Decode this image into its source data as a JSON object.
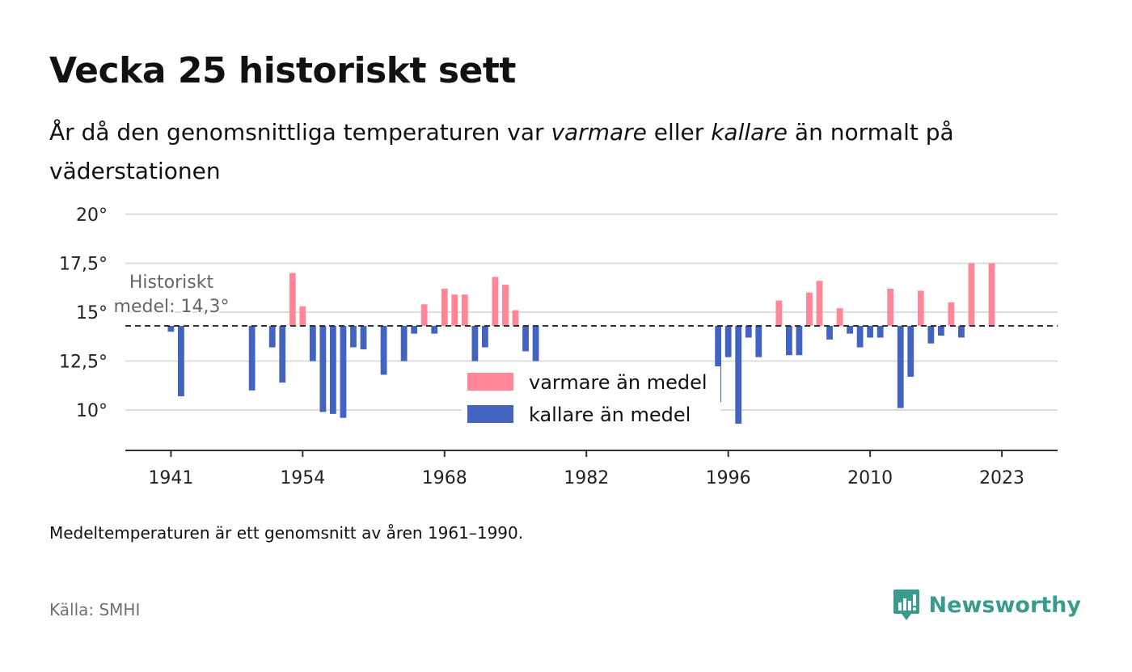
{
  "header": {
    "title": "Vecka 25 historiskt sett",
    "subtitle_parts": [
      "År då den genomsnittliga temperaturen var ",
      "varmare",
      " eller ",
      "kallare",
      " än normalt på väderstationen"
    ]
  },
  "footer": {
    "note": "Medeltemperaturen är ett genomsnitt av åren 1961–1990.",
    "source": "Källa: SMHI",
    "brand": "Newsworthy"
  },
  "colors": {
    "warm": "#ff8696",
    "cold": "#4263c0",
    "brand": "#3a9a8e",
    "grid": "#dddddd",
    "reference": "#333333"
  },
  "chart_data": {
    "type": "bar",
    "baseline": 14.3,
    "baseline_label": [
      "Historiskt",
      "medel: 14,3°"
    ],
    "ylim": [
      8,
      20
    ],
    "yticks": [
      10,
      12.5,
      15,
      17.5,
      20
    ],
    "ytick_labels": [
      "10°",
      "12,5°",
      "15°",
      "17,5°",
      "20°"
    ],
    "xlim": [
      1936.5,
      2028.5
    ],
    "xticks": [
      1941,
      1954,
      1968,
      1982,
      1996,
      2010,
      2023
    ],
    "xtick_labels": [
      "1941",
      "1954",
      "1968",
      "1982",
      "1996",
      "2010",
      "2023"
    ],
    "grid": true,
    "legend": {
      "position": "center",
      "entries": [
        {
          "label": "varmare än medel",
          "color": "#ff8696"
        },
        {
          "label": "kallare än medel",
          "color": "#4263c0"
        }
      ]
    },
    "x": [
      1941,
      1942,
      1949,
      1951,
      1952,
      1953,
      1954,
      1955,
      1956,
      1957,
      1958,
      1959,
      1960,
      1962,
      1964,
      1965,
      1966,
      1967,
      1968,
      1969,
      1970,
      1971,
      1972,
      1973,
      1974,
      1975,
      1976,
      1977,
      1995,
      1996,
      1997,
      1998,
      1999,
      2001,
      2002,
      2003,
      2004,
      2005,
      2006,
      2007,
      2008,
      2009,
      2010,
      2011,
      2012,
      2013,
      2014,
      2015,
      2016,
      2017,
      2018,
      2019,
      2020,
      2022,
      2023,
      2024
    ],
    "values": [
      14.0,
      10.7,
      11.0,
      13.2,
      11.4,
      17.0,
      15.3,
      12.5,
      9.9,
      9.8,
      9.6,
      13.2,
      13.1,
      11.8,
      12.5,
      13.9,
      15.4,
      13.9,
      16.2,
      15.9,
      15.9,
      12.5,
      13.2,
      16.8,
      16.4,
      15.1,
      13.0,
      12.5,
      10.4,
      12.7,
      9.3,
      13.7,
      12.7,
      15.6,
      12.8,
      12.8,
      16.0,
      16.6,
      13.6,
      15.2,
      13.9,
      13.2,
      13.7,
      13.7,
      16.2,
      10.1,
      11.7,
      16.1,
      13.4,
      13.8,
      15.5,
      13.7,
      17.5,
      17.5,
      14.3,
      14.3
    ]
  }
}
